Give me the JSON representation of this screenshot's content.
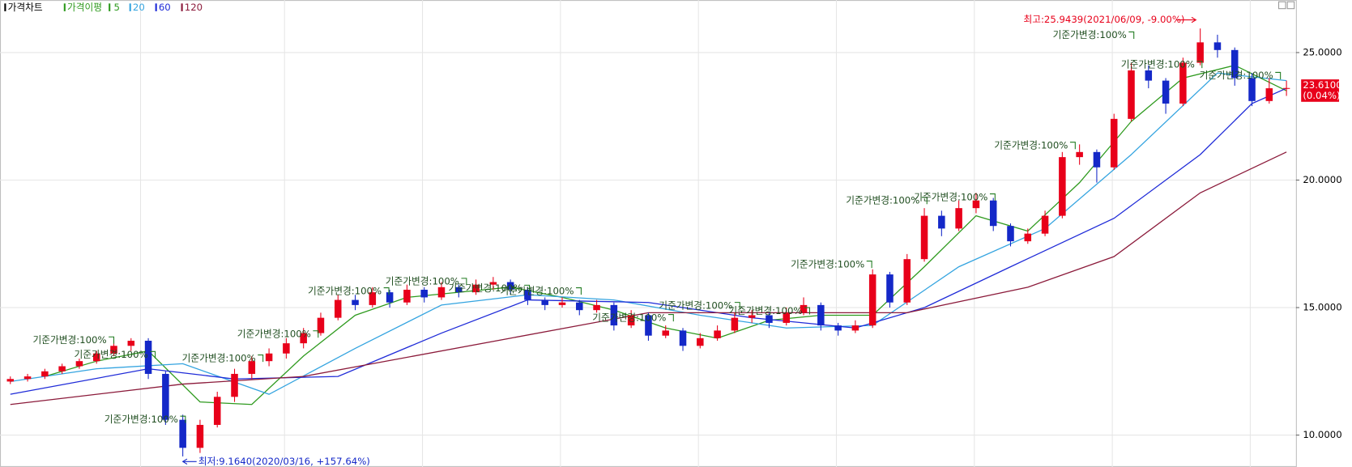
{
  "chart_data": {
    "type": "candlestick",
    "title": "가격차트",
    "ma_label": "가격이평",
    "up_color": "#e8001a",
    "down_color": "#1428c8",
    "grid": true,
    "ylim": [
      8.75,
      27.06
    ],
    "yticks": [
      {
        "value": 10,
        "label": "10.0000"
      },
      {
        "value": 15,
        "label": "15.0000"
      },
      {
        "value": 20,
        "label": "20.0000"
      },
      {
        "value": 25,
        "label": "25.0000"
      }
    ],
    "open": [
      12.1,
      12.2,
      12.3,
      12.5,
      12.7,
      12.9,
      13.2,
      13.5,
      13.7,
      12.4,
      10.6,
      9.5,
      10.4,
      11.5,
      12.4,
      12.9,
      13.2,
      13.6,
      14.0,
      14.6,
      15.3,
      15.1,
      15.6,
      15.2,
      15.7,
      15.4,
      15.8,
      15.6,
      15.9,
      16.0,
      15.7,
      15.3,
      15.1,
      15.2,
      14.9,
      15.1,
      14.3,
      14.7,
      13.9,
      14.1,
      13.5,
      13.8,
      14.1,
      14.6,
      14.7,
      14.4,
      14.8,
      15.1,
      14.3,
      14.1,
      14.3,
      16.3,
      15.2,
      16.9,
      18.6,
      18.1,
      18.9,
      19.2,
      18.2,
      17.6,
      17.9,
      18.6,
      20.9,
      21.1,
      20.5,
      22.4,
      24.3,
      23.9,
      23.0,
      24.6,
      25.4,
      25.1,
      24.0,
      23.1,
      23.6
    ],
    "high": [
      12.3,
      12.4,
      12.6,
      12.8,
      13.0,
      13.3,
      13.7,
      13.8,
      13.8,
      12.5,
      10.8,
      10.6,
      11.7,
      12.6,
      13.1,
      13.4,
      13.8,
      14.2,
      14.8,
      15.5,
      15.5,
      15.8,
      15.7,
      15.9,
      15.8,
      16.0,
      15.9,
      16.1,
      16.2,
      16.1,
      15.8,
      15.4,
      15.4,
      15.3,
      15.3,
      15.2,
      14.9,
      14.8,
      14.3,
      14.2,
      14.0,
      14.3,
      14.8,
      14.9,
      14.8,
      15.0,
      15.4,
      15.2,
      14.4,
      14.5,
      16.5,
      16.4,
      17.1,
      18.9,
      18.8,
      19.2,
      19.5,
      19.3,
      18.3,
      18.1,
      18.8,
      21.1,
      21.4,
      21.2,
      22.6,
      24.6,
      24.5,
      24.0,
      24.8,
      25.9439,
      25.7,
      25.2,
      24.2,
      24.0,
      23.9
    ],
    "low": [
      12.0,
      12.1,
      12.2,
      12.4,
      12.6,
      12.8,
      13.1,
      13.3,
      12.2,
      10.4,
      9.164,
      9.3,
      10.3,
      11.3,
      12.2,
      12.7,
      13.0,
      13.4,
      13.9,
      14.5,
      14.9,
      15.0,
      15.0,
      15.1,
      15.2,
      15.3,
      15.4,
      15.5,
      15.7,
      15.5,
      15.1,
      14.9,
      15.0,
      14.7,
      14.8,
      14.1,
      14.2,
      13.7,
      13.8,
      13.3,
      13.4,
      13.7,
      14.0,
      14.4,
      14.2,
      14.3,
      14.7,
      14.1,
      13.9,
      14.0,
      14.2,
      15.0,
      15.1,
      16.8,
      17.8,
      18.0,
      18.7,
      18.0,
      17.4,
      17.5,
      17.8,
      18.5,
      20.6,
      19.9,
      20.4,
      22.3,
      23.6,
      22.6,
      22.9,
      24.5,
      24.8,
      23.7,
      22.9,
      23.0,
      23.3
    ],
    "close": [
      12.2,
      12.3,
      12.5,
      12.7,
      12.9,
      13.2,
      13.5,
      13.7,
      12.4,
      10.6,
      9.5,
      10.4,
      11.5,
      12.4,
      12.9,
      13.2,
      13.6,
      14.0,
      14.6,
      15.3,
      15.1,
      15.6,
      15.2,
      15.7,
      15.4,
      15.8,
      15.6,
      15.9,
      16.0,
      15.7,
      15.3,
      15.1,
      15.2,
      14.9,
      15.1,
      14.3,
      14.7,
      13.9,
      14.1,
      13.5,
      13.8,
      14.1,
      14.6,
      14.7,
      14.4,
      14.8,
      15.1,
      14.3,
      14.1,
      14.3,
      16.3,
      15.2,
      16.9,
      18.6,
      18.1,
      18.9,
      19.2,
      18.2,
      17.6,
      17.9,
      18.6,
      20.9,
      21.1,
      20.5,
      22.4,
      24.3,
      23.9,
      23.0,
      24.6,
      25.4,
      25.1,
      24.0,
      23.1,
      23.6,
      23.61
    ],
    "series": [
      {
        "name": "5",
        "color": "#2e9a1e",
        "x": [
          2,
          5,
          8,
          11,
          14,
          17,
          20,
          23,
          26,
          29,
          32,
          35,
          38,
          41,
          44,
          47,
          50,
          53,
          56,
          59,
          62,
          65,
          68,
          71,
          74
        ],
        "values": [
          12.3,
          12.9,
          13.3,
          11.3,
          11.2,
          13.1,
          14.7,
          15.4,
          15.6,
          15.8,
          15.4,
          14.9,
          14.2,
          13.8,
          14.5,
          14.7,
          14.7,
          16.6,
          18.6,
          18.0,
          19.9,
          22.3,
          24.0,
          24.5,
          23.5
        ]
      },
      {
        "name": "20",
        "color": "#34a4e0",
        "x": [
          0,
          5,
          10,
          15,
          20,
          25,
          30,
          35,
          40,
          45,
          50,
          55,
          60,
          65,
          70,
          74
        ],
        "values": [
          12.1,
          12.6,
          12.8,
          11.6,
          13.4,
          15.1,
          15.5,
          15.3,
          14.7,
          14.2,
          14.3,
          16.6,
          18.1,
          21.0,
          24.2,
          23.9
        ]
      },
      {
        "name": "60",
        "color": "#1f2bd8",
        "x": [
          0,
          8,
          13,
          19,
          25,
          30,
          37,
          43,
          49,
          53,
          58,
          64,
          69,
          72,
          74
        ],
        "values": [
          11.6,
          12.6,
          12.2,
          12.3,
          14.0,
          15.3,
          15.2,
          14.6,
          14.2,
          15.0,
          16.6,
          18.5,
          21.0,
          23.0,
          23.6
        ]
      },
      {
        "name": "120",
        "color": "#8b1a3a",
        "x": [
          0,
          10,
          17,
          29,
          37,
          44,
          52,
          59,
          64,
          69,
          74
        ],
        "values": [
          11.2,
          12.0,
          12.3,
          13.8,
          14.8,
          14.8,
          14.8,
          15.8,
          17.0,
          19.5,
          21.1
        ]
      }
    ],
    "last_price": {
      "value": 23.61,
      "label": "23.6100",
      "change": "(0.04%)"
    },
    "annotations": {
      "high": "최고:25.9439(2021/06/09, -9.00%)",
      "low": "최저:9.1640(2020/03/16, +157.64%)",
      "base_changes": [
        "기준가변경:100%",
        "기준가변경:100%",
        "기준가변경:100%",
        "기준가변경:100%",
        "기준가변경:100%",
        "기준가변경:100%",
        "기준가변경:100%",
        "기준가변경:100%",
        "기준가변경:100%",
        "기준가변경:100%",
        "기준가변경:100%",
        "기준가변경:100%",
        "기준가변경:100%",
        "기준가변경:100%",
        "기준가변경:100%",
        "기준가변경:100%",
        "기준가변경:100%",
        "기준가변경:100%",
        "기준가변경:100%"
      ]
    }
  }
}
